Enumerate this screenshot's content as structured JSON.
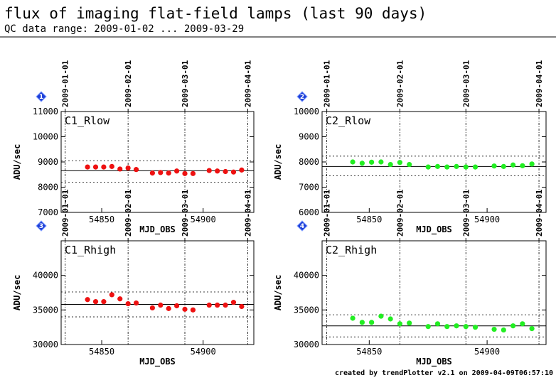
{
  "header": {
    "title": "flux of imaging flat-field lamps (last 90 days)",
    "subtitle": "QC data range: 2009-01-02 ... 2009-03-29"
  },
  "footer": {
    "credit": "created by trendPlotter v2.1 on 2009-04-09T06:57:10"
  },
  "colors": {
    "red": "#ee1111",
    "green": "#22ee22",
    "marker": "#1d3fd8"
  },
  "chart_data": [
    {
      "type": "scatter",
      "number": "1",
      "label": "C1_Rlow",
      "color": "#ee1111",
      "xlabel": "MJD_OBS",
      "ylabel": "ADU/sec",
      "xlim": [
        54830,
        54925
      ],
      "ylim": [
        7000,
        11000
      ],
      "yticks": [
        7000,
        8000,
        9000,
        10000,
        11000
      ],
      "xticks": [
        54850,
        54900
      ],
      "date_ticks": [
        {
          "x": 54832,
          "label": "2009-01-01"
        },
        {
          "x": 54863,
          "label": "2009-02-01"
        },
        {
          "x": 54891,
          "label": "2009-03-01"
        },
        {
          "x": 54922,
          "label": "2009-04-01"
        }
      ],
      "mean": 8650,
      "band": [
        8200,
        9050
      ],
      "x": [
        54843,
        54847,
        54851,
        54855,
        54859,
        54863,
        54867,
        54875,
        54879,
        54883,
        54887,
        54891,
        54895,
        54903,
        54907,
        54911,
        54915,
        54919
      ],
      "y": [
        8800,
        8800,
        8800,
        8820,
        8720,
        8760,
        8700,
        8560,
        8580,
        8560,
        8640,
        8540,
        8540,
        8660,
        8640,
        8620,
        8600,
        8680
      ]
    },
    {
      "type": "scatter",
      "number": "2",
      "label": "C2_Rlow",
      "color": "#22ee22",
      "xlabel": "MJD_OBS",
      "ylabel": "ADU/sec",
      "xlim": [
        54830,
        54925
      ],
      "ylim": [
        6000,
        10000
      ],
      "yticks": [
        6000,
        7000,
        8000,
        9000,
        10000
      ],
      "xticks": [
        54850,
        54900
      ],
      "date_ticks": [
        {
          "x": 54832,
          "label": "2009-01-01"
        },
        {
          "x": 54863,
          "label": "2009-02-01"
        },
        {
          "x": 54891,
          "label": "2009-03-01"
        },
        {
          "x": 54922,
          "label": "2009-04-01"
        }
      ],
      "mean": 7820,
      "band": [
        7450,
        8230
      ],
      "x": [
        54843,
        54847,
        54851,
        54855,
        54859,
        54863,
        54867,
        54875,
        54879,
        54883,
        54887,
        54891,
        54895,
        54903,
        54907,
        54911,
        54915,
        54919
      ],
      "y": [
        8000,
        7950,
        7990,
        8000,
        7900,
        7980,
        7900,
        7800,
        7820,
        7800,
        7820,
        7800,
        7800,
        7840,
        7820,
        7880,
        7850,
        7920
      ]
    },
    {
      "type": "scatter",
      "number": "3",
      "label": "C1_Rhigh",
      "color": "#ee1111",
      "xlabel": "MJD_OBS",
      "ylabel": "ADU/sec",
      "xlim": [
        54830,
        54925
      ],
      "ylim": [
        30000,
        45000
      ],
      "yticks": [
        30000,
        35000,
        40000
      ],
      "xticks": [
        54850,
        54900
      ],
      "date_ticks": [
        {
          "x": 54832,
          "label": "2009-01-01"
        },
        {
          "x": 54863,
          "label": "2009-02-01"
        },
        {
          "x": 54891,
          "label": "2009-03-01"
        },
        {
          "x": 54922,
          "label": "2009-04-01"
        }
      ],
      "mean": 35800,
      "band": [
        34000,
        37600
      ],
      "x": [
        54843,
        54847,
        54851,
        54855,
        54859,
        54863,
        54867,
        54875,
        54879,
        54883,
        54887,
        54891,
        54895,
        54903,
        54907,
        54911,
        54915,
        54919
      ],
      "y": [
        36500,
        36200,
        36200,
        37200,
        36600,
        35900,
        36000,
        35300,
        35700,
        35200,
        35600,
        35100,
        35000,
        35700,
        35700,
        35700,
        36100,
        35500
      ]
    },
    {
      "type": "scatter",
      "number": "4",
      "label": "C2_Rhigh",
      "color": "#22ee22",
      "xlabel": "MJD_OBS",
      "ylabel": "ADU/sec",
      "xlim": [
        54830,
        54925
      ],
      "ylim": [
        30000,
        45000
      ],
      "yticks": [
        30000,
        35000,
        40000
      ],
      "xticks": [
        54850,
        54900
      ],
      "date_ticks": [
        {
          "x": 54832,
          "label": "2009-01-01"
        },
        {
          "x": 54863,
          "label": "2009-02-01"
        },
        {
          "x": 54891,
          "label": "2009-03-01"
        },
        {
          "x": 54922,
          "label": "2009-04-01"
        }
      ],
      "mean": 32700,
      "band": [
        31100,
        34300
      ],
      "x": [
        54843,
        54847,
        54851,
        54855,
        54859,
        54863,
        54867,
        54875,
        54879,
        54883,
        54887,
        54891,
        54895,
        54903,
        54907,
        54911,
        54915,
        54919
      ],
      "y": [
        33800,
        33200,
        33200,
        34100,
        33700,
        33000,
        33100,
        32600,
        33000,
        32600,
        32700,
        32600,
        32500,
        32200,
        32100,
        32700,
        33000,
        32300
      ]
    }
  ]
}
